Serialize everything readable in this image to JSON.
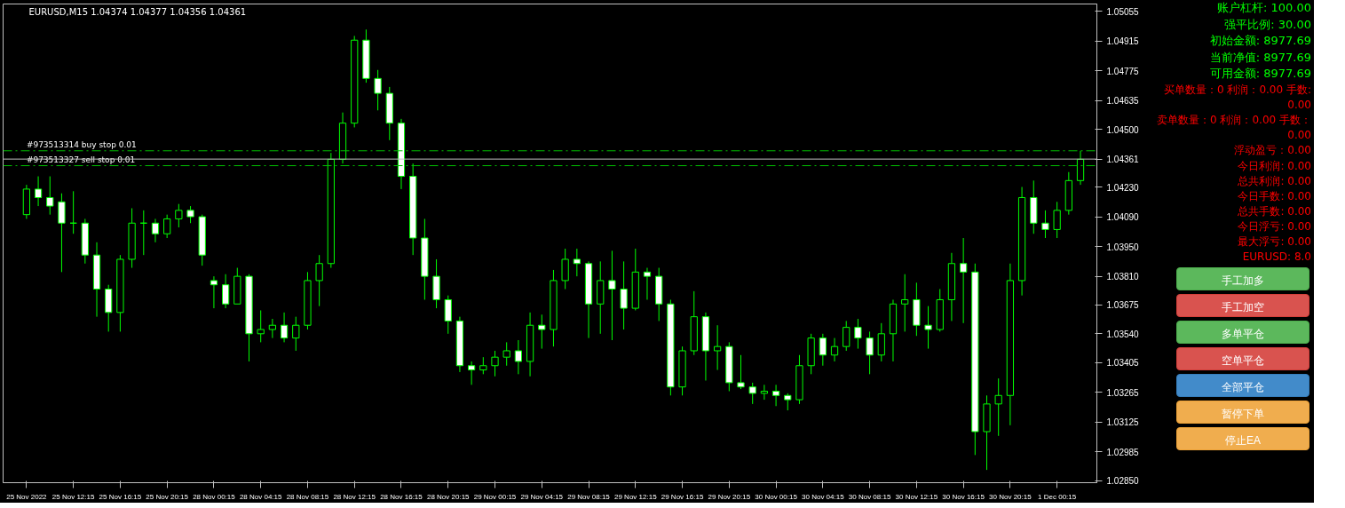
{
  "chart_data": {
    "type": "candlestick",
    "title": "EURUSD,M15  1.04374 1.04377 1.04356 1.04361",
    "categories": [
      "25 Nov 2022",
      null,
      null,
      null,
      "25 Nov 12:15",
      null,
      null,
      null,
      "25 Nov 16:15",
      null,
      null,
      null,
      "25 Nov 20:15",
      null,
      null,
      null,
      "28 Nov 00:15",
      null,
      null,
      null,
      "28 Nov 04:15",
      null,
      null,
      null,
      "28 Nov 08:15",
      null,
      null,
      null,
      "28 Nov 12:15",
      null,
      null,
      null,
      "28 Nov 16:15",
      null,
      null,
      null,
      "28 Nov 20:15",
      null,
      null,
      null,
      "29 Nov 00:15",
      null,
      null,
      null,
      "29 Nov 04:15",
      null,
      null,
      null,
      "29 Nov 08:15",
      null,
      null,
      null,
      "29 Nov 12:15",
      null,
      null,
      null,
      "29 Nov 16:15",
      null,
      null,
      null,
      "29 Nov 20:15",
      null,
      null,
      null,
      "30 Nov 00:15",
      null,
      null,
      null,
      "30 Nov 04:15",
      null,
      null,
      null,
      "30 Nov 08:15",
      null,
      null,
      null,
      "30 Nov 12:15",
      null,
      null,
      null,
      "30 Nov 16:15",
      null,
      null,
      null,
      "30 Nov 20:15",
      null,
      null,
      null,
      "1 Dec 00:15",
      null,
      null
    ],
    "series": [
      {
        "color": "#00ff00",
        "ohlc": [
          [
            1.041,
            1.0424,
            1.0408,
            1.0422
          ],
          [
            1.0422,
            1.0428,
            1.0414,
            1.0418
          ],
          [
            1.0418,
            1.0428,
            1.041,
            1.0414
          ],
          [
            1.0416,
            1.042,
            1.0383,
            1.0406
          ],
          [
            1.0406,
            1.0421,
            1.0401,
            1.0406
          ],
          [
            1.0406,
            1.0408,
            1.0387,
            1.0391
          ],
          [
            1.0391,
            1.0397,
            1.0362,
            1.0375
          ],
          [
            1.0375,
            1.0377,
            1.0355,
            1.0364
          ],
          [
            1.0364,
            1.0391,
            1.0355,
            1.0389
          ],
          [
            1.0389,
            1.0413,
            1.0385,
            1.0406
          ],
          [
            1.0406,
            1.0412,
            1.0391,
            1.0406
          ],
          [
            1.0406,
            1.0408,
            1.0397,
            1.0401
          ],
          [
            1.0401,
            1.041,
            1.0399,
            1.0408
          ],
          [
            1.0408,
            1.0415,
            1.0404,
            1.0412
          ],
          [
            1.0412,
            1.0414,
            1.0406,
            1.0409
          ],
          [
            1.0409,
            1.041,
            1.0386,
            1.0391
          ],
          [
            1.0379,
            1.0381,
            1.0366,
            1.0377
          ],
          [
            1.0377,
            1.0382,
            1.0366,
            1.0368
          ],
          [
            1.0368,
            1.0385,
            1.0368,
            1.0381
          ],
          [
            1.0381,
            1.0382,
            1.0341,
            1.0354
          ],
          [
            1.0354,
            1.0365,
            1.035,
            1.0356
          ],
          [
            1.0356,
            1.0361,
            1.0352,
            1.0358
          ],
          [
            1.0358,
            1.0364,
            1.035,
            1.0352
          ],
          [
            1.0352,
            1.0362,
            1.0346,
            1.0358
          ],
          [
            1.0358,
            1.0383,
            1.0356,
            1.0379
          ],
          [
            1.0379,
            1.0391,
            1.0367,
            1.0387
          ],
          [
            1.0387,
            1.0439,
            1.0385,
            1.0436
          ],
          [
            1.0436,
            1.0458,
            1.0434,
            1.0453
          ],
          [
            1.0453,
            1.0494,
            1.0451,
            1.0492
          ],
          [
            1.0492,
            1.0497,
            1.0472,
            1.0474
          ],
          [
            1.0474,
            1.0478,
            1.0459,
            1.0467
          ],
          [
            1.0467,
            1.047,
            1.0445,
            1.0453
          ],
          [
            1.0453,
            1.0455,
            1.0422,
            1.0428
          ],
          [
            1.0428,
            1.0434,
            1.0391,
            1.0399
          ],
          [
            1.0399,
            1.0408,
            1.037,
            1.0381
          ],
          [
            1.0381,
            1.0389,
            1.0366,
            1.037
          ],
          [
            1.037,
            1.0372,
            1.0354,
            1.036
          ],
          [
            1.036,
            1.0362,
            1.0336,
            1.0339
          ],
          [
            1.0339,
            1.0341,
            1.033,
            1.0337
          ],
          [
            1.0337,
            1.0343,
            1.0335,
            1.0339
          ],
          [
            1.0339,
            1.0346,
            1.0334,
            1.0343
          ],
          [
            1.0343,
            1.035,
            1.0339,
            1.0346
          ],
          [
            1.0346,
            1.0351,
            1.0335,
            1.0341
          ],
          [
            1.0341,
            1.0364,
            1.0334,
            1.0358
          ],
          [
            1.0358,
            1.0363,
            1.0347,
            1.0356
          ],
          [
            1.0356,
            1.0384,
            1.0348,
            1.0379
          ],
          [
            1.0379,
            1.0394,
            1.0375,
            1.0389
          ],
          [
            1.0389,
            1.0394,
            1.0381,
            1.0387
          ],
          [
            1.0387,
            1.0388,
            1.0352,
            1.0368
          ],
          [
            1.0368,
            1.0388,
            1.0354,
            1.0379
          ],
          [
            1.0379,
            1.0393,
            1.0351,
            1.0375
          ],
          [
            1.0375,
            1.0388,
            1.0356,
            1.0366
          ],
          [
            1.0366,
            1.0394,
            1.0365,
            1.0383
          ],
          [
            1.0383,
            1.0385,
            1.037,
            1.0381
          ],
          [
            1.0381,
            1.0385,
            1.036,
            1.0368
          ],
          [
            1.0368,
            1.037,
            1.0325,
            1.0329
          ],
          [
            1.0329,
            1.0348,
            1.0325,
            1.0346
          ],
          [
            1.0346,
            1.0374,
            1.0344,
            1.0362
          ],
          [
            1.0362,
            1.0364,
            1.0332,
            1.0346
          ],
          [
            1.0346,
            1.0358,
            1.0337,
            1.0348
          ],
          [
            1.0348,
            1.035,
            1.0327,
            1.0331
          ],
          [
            1.0331,
            1.0344,
            1.0328,
            1.0329
          ],
          [
            1.0329,
            1.0331,
            1.0321,
            1.0326
          ],
          [
            1.0326,
            1.033,
            1.0323,
            1.0327
          ],
          [
            1.0327,
            1.033,
            1.032,
            1.0325
          ],
          [
            1.0325,
            1.0326,
            1.0318,
            1.0323
          ],
          [
            1.0323,
            1.0344,
            1.0321,
            1.0339
          ],
          [
            1.0339,
            1.0354,
            1.0335,
            1.0352
          ],
          [
            1.0352,
            1.0354,
            1.0339,
            1.0344
          ],
          [
            1.0344,
            1.0352,
            1.0341,
            1.0348
          ],
          [
            1.0348,
            1.036,
            1.0346,
            1.0357
          ],
          [
            1.0357,
            1.0361,
            1.0347,
            1.0352
          ],
          [
            1.0352,
            1.0355,
            1.0335,
            1.0344
          ],
          [
            1.0344,
            1.0359,
            1.0341,
            1.0354
          ],
          [
            1.0354,
            1.037,
            1.0341,
            1.0368
          ],
          [
            1.0368,
            1.0382,
            1.0355,
            1.037
          ],
          [
            1.037,
            1.0378,
            1.0353,
            1.0358
          ],
          [
            1.0358,
            1.0367,
            1.0347,
            1.0356
          ],
          [
            1.0356,
            1.0375,
            1.0355,
            1.037
          ],
          [
            1.037,
            1.0392,
            1.036,
            1.0387
          ],
          [
            1.0387,
            1.0399,
            1.0359,
            1.0383
          ],
          [
            1.0383,
            1.0387,
            1.0297,
            1.0308
          ],
          [
            1.0308,
            1.0325,
            1.029,
            1.0321
          ],
          [
            1.0321,
            1.0333,
            1.0306,
            1.0325
          ],
          [
            1.0325,
            1.0387,
            1.0311,
            1.0379
          ],
          [
            1.0379,
            1.0423,
            1.0372,
            1.0418
          ],
          [
            1.0418,
            1.0426,
            1.0401,
            1.0406
          ],
          [
            1.0406,
            1.0412,
            1.0399,
            1.0403
          ],
          [
            1.0403,
            1.0416,
            1.0399,
            1.0412
          ],
          [
            1.0412,
            1.043,
            1.041,
            1.0426
          ],
          [
            1.0426,
            1.044,
            1.0424,
            1.0436
          ]
        ]
      }
    ],
    "ylim": [
      1.0284,
      1.0509
    ],
    "yticks": [
      1.05055,
      1.04915,
      1.04775,
      1.04635,
      {
        "value": 1.045,
        "label": "1.04500"
      },
      1.04361,
      {
        "value": 1.0423,
        "label": "1.04230"
      },
      {
        "value": 1.0409,
        "label": "1.04090"
      },
      {
        "value": 1.0395,
        "label": "1.03950"
      },
      {
        "value": 1.0381,
        "label": "1.03810"
      },
      1.03675,
      {
        "value": 1.0354,
        "label": "1.03540"
      },
      1.03405,
      1.03265,
      1.03125,
      1.02985,
      {
        "value": 1.0285,
        "label": "1.02850"
      }
    ],
    "ref_lines": [
      {
        "axis": "y",
        "value": 1.044,
        "label": "#973513314 buy stop 0.01",
        "color": "#00c000",
        "line_style": "dashed"
      },
      {
        "axis": "y",
        "value": 1.0433,
        "label": "#973513327 sell stop 0.01",
        "color": "#00c000",
        "line_style": "dashed"
      },
      {
        "axis": "y",
        "value": 1.04361,
        "label": null,
        "color": "#c0c0c0",
        "line_style": "solid"
      }
    ],
    "annotations": [
      "账户杠杆: 100.00",
      "强平比例: 30.00",
      "初始金额: 8977.69",
      "当前净值: 8977.69",
      "可用金额: 8977.69",
      "买单数量：0  利润：0.00  手数:  0.00",
      "卖单数量：0  利润：0.00  手数：  0.00",
      "浮动盈亏：0.00",
      "今日利润: 0.00",
      "总共利润: 0.00",
      "今日手数: 0.00",
      "总共手数: 0.00",
      "今日浮亏: 0.00",
      "最大浮亏: 0.00",
      "EURUSD: 8.0",
      "手工加多",
      "手工加空",
      "多单平仓",
      "空单平仓",
      "全部平仓",
      "暂停下单",
      "停止EA"
    ],
    "grid": false
  }
}
